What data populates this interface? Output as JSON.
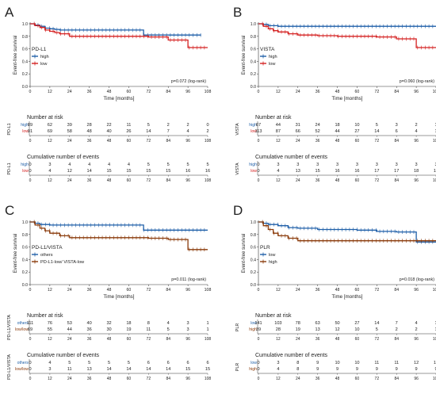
{
  "time_ticks": [
    "0",
    "12",
    "24",
    "36",
    "48",
    "60",
    "72",
    "84",
    "96",
    "108"
  ],
  "y_ticks": [
    "0.0",
    "0.2",
    "0.4",
    "0.6",
    "0.8",
    "1.0"
  ],
  "axes": {
    "xlabel": "Time [months]",
    "ylabel": "Event-free survival"
  },
  "tables": {
    "risk_title": "Number at risk",
    "events_title": "Cumulative number of events"
  },
  "colors": {
    "blue": "#1f5fa8",
    "red": "#d42020",
    "brown": "#8a3a0a"
  },
  "chart_data": [
    {
      "type": "line",
      "panel": "A",
      "legend_title": "PD-L1",
      "pvalue": "p=0.072 (log-rank)",
      "row_label": "PD-L1",
      "xlim": [
        0,
        108
      ],
      "ylim": [
        0,
        1
      ],
      "series": [
        {
          "name": "high",
          "color": "#1f5fa8",
          "x": [
            0,
            3,
            6,
            9,
            12,
            15,
            18,
            24,
            36,
            48,
            60,
            69,
            72,
            84,
            96,
            104
          ],
          "y": [
            1.0,
            0.98,
            0.96,
            0.93,
            0.92,
            0.91,
            0.9,
            0.9,
            0.9,
            0.9,
            0.9,
            0.82,
            0.82,
            0.82,
            0.82,
            0.82
          ],
          "risk": [
            "89",
            "62",
            "39",
            "28",
            "22",
            "11",
            "5",
            "2",
            "2",
            "0"
          ],
          "events": [
            "0",
            "3",
            "4",
            "4",
            "4",
            "4",
            "5",
            "5",
            "5",
            "5"
          ]
        },
        {
          "name": "low",
          "color": "#d42020",
          "x": [
            0,
            3,
            6,
            9,
            12,
            15,
            18,
            24,
            36,
            48,
            60,
            72,
            84,
            96,
            108
          ],
          "y": [
            1.0,
            0.97,
            0.94,
            0.9,
            0.88,
            0.86,
            0.84,
            0.8,
            0.8,
            0.8,
            0.8,
            0.79,
            0.74,
            0.62,
            0.62
          ],
          "risk": [
            "91",
            "69",
            "58",
            "48",
            "40",
            "26",
            "14",
            "7",
            "4",
            "2"
          ],
          "events": [
            "0",
            "4",
            "12",
            "14",
            "15",
            "15",
            "15",
            "15",
            "16",
            "16"
          ]
        }
      ]
    },
    {
      "type": "line",
      "panel": "B",
      "legend_title": "VISTA",
      "pvalue": "p=0.060 (log-rank)",
      "row_label": "VISTA",
      "xlim": [
        0,
        108
      ],
      "ylim": [
        0,
        1
      ],
      "series": [
        {
          "name": "high",
          "color": "#1f5fa8",
          "x": [
            0,
            3,
            6,
            12,
            24,
            36,
            48,
            60,
            72,
            84,
            96,
            108
          ],
          "y": [
            1.0,
            0.99,
            0.97,
            0.96,
            0.96,
            0.96,
            0.96,
            0.96,
            0.96,
            0.96,
            0.96,
            0.96
          ],
          "risk": [
            "67",
            "44",
            "31",
            "24",
            "18",
            "10",
            "5",
            "3",
            "2",
            "1"
          ],
          "events": [
            "0",
            "3",
            "3",
            "3",
            "3",
            "3",
            "3",
            "3",
            "3",
            "3"
          ]
        },
        {
          "name": "low",
          "color": "#d42020",
          "x": [
            0,
            3,
            6,
            9,
            12,
            18,
            24,
            36,
            48,
            60,
            72,
            84,
            96,
            108
          ],
          "y": [
            1.0,
            0.96,
            0.92,
            0.89,
            0.87,
            0.84,
            0.82,
            0.81,
            0.8,
            0.8,
            0.79,
            0.76,
            0.62,
            0.62
          ],
          "risk": [
            "113",
            "87",
            "66",
            "52",
            "44",
            "27",
            "14",
            "6",
            "4",
            "1"
          ],
          "events": [
            "0",
            "4",
            "13",
            "15",
            "16",
            "16",
            "17",
            "17",
            "18",
            "18"
          ]
        }
      ]
    },
    {
      "type": "line",
      "panel": "C",
      "legend_title": "PD-L1/VISTA",
      "pvalue": "p=0.011 (log-rank)",
      "row_label": "PD-L1/VISTA",
      "xlim": [
        0,
        108
      ],
      "ylim": [
        0,
        1
      ],
      "series": [
        {
          "name": "others",
          "row_name": "others",
          "color": "#1f5fa8",
          "x": [
            0,
            3,
            6,
            12,
            24,
            36,
            48,
            60,
            69,
            72,
            84,
            96,
            108
          ],
          "y": [
            1.0,
            0.98,
            0.96,
            0.95,
            0.95,
            0.95,
            0.95,
            0.95,
            0.87,
            0.87,
            0.87,
            0.87,
            0.87
          ],
          "risk": [
            "111",
            "76",
            "53",
            "40",
            "32",
            "18",
            "8",
            "4",
            "3",
            "1"
          ],
          "events": [
            "0",
            "4",
            "5",
            "5",
            "5",
            "5",
            "6",
            "6",
            "6",
            "6"
          ]
        },
        {
          "name": "PD-L1-low/ VISTA-low",
          "row_name": "low/low",
          "color": "#8a3a0a",
          "x": [
            0,
            3,
            6,
            9,
            12,
            18,
            24,
            36,
            48,
            60,
            72,
            84,
            96,
            108
          ],
          "y": [
            1.0,
            0.95,
            0.9,
            0.86,
            0.82,
            0.78,
            0.75,
            0.75,
            0.75,
            0.75,
            0.74,
            0.72,
            0.56,
            0.56
          ],
          "risk": [
            "69",
            "55",
            "44",
            "36",
            "30",
            "19",
            "11",
            "5",
            "3",
            "1"
          ],
          "events": [
            "0",
            "3",
            "11",
            "13",
            "14",
            "14",
            "14",
            "14",
            "15",
            "15"
          ]
        }
      ]
    },
    {
      "type": "line",
      "panel": "D",
      "legend_title": "PLR",
      "pvalue": "p=0.018 (log-rank)",
      "row_label": "PLR",
      "xlim": [
        0,
        108
      ],
      "ylim": [
        0,
        1
      ],
      "series": [
        {
          "name": "low",
          "color": "#1f5fa8",
          "x": [
            0,
            3,
            6,
            12,
            18,
            24,
            36,
            48,
            60,
            72,
            84,
            96,
            108
          ],
          "y": [
            1.0,
            0.98,
            0.96,
            0.94,
            0.91,
            0.9,
            0.88,
            0.88,
            0.87,
            0.85,
            0.84,
            0.68,
            0.68
          ],
          "risk": [
            "141",
            "103",
            "78",
            "63",
            "50",
            "27",
            "14",
            "7",
            "4",
            "1"
          ],
          "events": [
            "0",
            "3",
            "8",
            "9",
            "10",
            "10",
            "11",
            "11",
            "12",
            "12"
          ]
        },
        {
          "name": "high",
          "color": "#8a3a0a",
          "x": [
            0,
            3,
            6,
            9,
            12,
            18,
            24,
            36,
            48,
            60,
            72,
            84,
            96,
            108
          ],
          "y": [
            1.0,
            0.94,
            0.88,
            0.82,
            0.78,
            0.74,
            0.7,
            0.7,
            0.7,
            0.7,
            0.7,
            0.7,
            0.7,
            0.7
          ],
          "risk": [
            "39",
            "28",
            "19",
            "13",
            "12",
            "10",
            "5",
            "2",
            "2",
            "1"
          ],
          "events": [
            "0",
            "4",
            "8",
            "9",
            "9",
            "9",
            "9",
            "9",
            "9",
            "9"
          ]
        }
      ]
    }
  ]
}
